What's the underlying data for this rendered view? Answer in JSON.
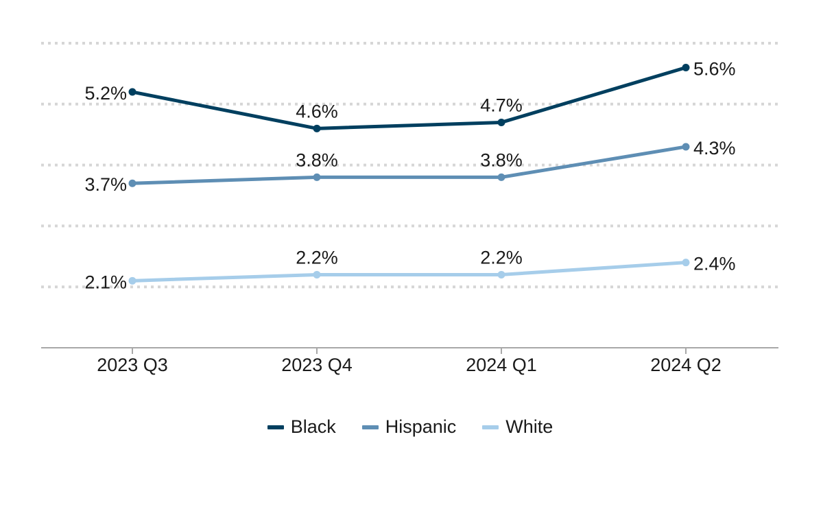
{
  "chart_data": {
    "type": "line",
    "categories": [
      "2023 Q3",
      "2023 Q4",
      "2024 Q1",
      "2024 Q2"
    ],
    "series": [
      {
        "name": "Black",
        "values": [
          5.2,
          4.6,
          4.7,
          5.6
        ],
        "labels": [
          "5.2%",
          "4.6%",
          "4.7%",
          "5.6%"
        ],
        "color": "#003f5f"
      },
      {
        "name": "Hispanic",
        "values": [
          3.7,
          3.8,
          3.8,
          4.3
        ],
        "labels": [
          "3.7%",
          "3.8%",
          "3.8%",
          "4.3%"
        ],
        "color": "#5e8eb4"
      },
      {
        "name": "White",
        "values": [
          2.1,
          2.2,
          2.2,
          2.4
        ],
        "labels": [
          "2.1%",
          "2.2%",
          "2.2%",
          "2.4%"
        ],
        "color": "#a6cdea"
      }
    ],
    "ylim": [
      1,
      6
    ],
    "grid": true,
    "legend_position": "bottom"
  }
}
